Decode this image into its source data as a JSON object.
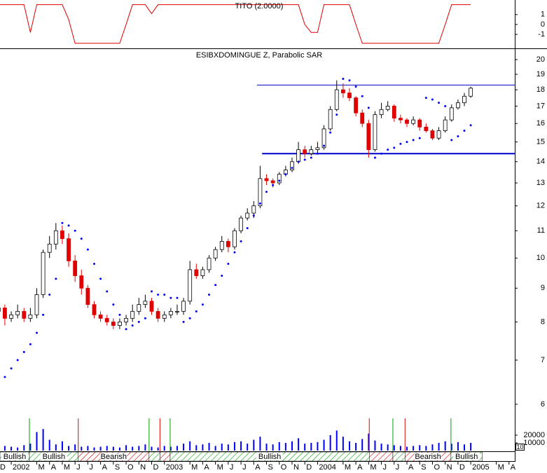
{
  "chart_data": [
    {
      "type": "line",
      "title": "TITO (2.0000)",
      "color": "#e00000",
      "values": [
        2,
        2,
        2,
        2,
        2,
        -0.8,
        2,
        2,
        2,
        2,
        2,
        0.5,
        -1.9,
        -1.9,
        -1.9,
        -1.9,
        -1.9,
        -1.9,
        -1.9,
        -1.9,
        0,
        2,
        2,
        2,
        1.1,
        2,
        2,
        2,
        2,
        2,
        2,
        2,
        2,
        2,
        2,
        2,
        2,
        2,
        2,
        2,
        2,
        2,
        2,
        2,
        2,
        2,
        2,
        2,
        0,
        -0.8,
        -0.8,
        2,
        2,
        2,
        2,
        2,
        0,
        -1.9,
        -1.9,
        -1.9,
        -1.9,
        -1.9,
        -1.9,
        -1.9,
        -1.9,
        -1.9,
        -1.9,
        -1.9,
        -1.9,
        -1.9,
        0,
        2,
        2,
        2,
        2
      ],
      "ylim": [
        -2.2,
        2.33
      ],
      "yticks": [
        1,
        0,
        -1
      ]
    },
    {
      "type": "candlestick",
      "title": "ESIBXDOMINGUE Z, Parabolic SAR",
      "log": true,
      "up_color": "#ffffff",
      "down_color": "#e00000",
      "open": [
        8.3,
        8.4,
        8.1,
        8.2,
        8.3,
        8.1,
        8.2,
        8.8,
        10.2,
        10.5,
        11.0,
        10.7,
        9.9,
        9.4,
        9.0,
        8.5,
        8.2,
        8.1,
        8.0,
        7.9,
        8.0,
        8.1,
        8.3,
        8.5,
        8.6,
        8.3,
        8.1,
        8.2,
        8.3,
        8.3,
        8.6,
        9.6,
        9.4,
        9.6,
        10.0,
        10.3,
        10.6,
        10.4,
        11.0,
        11.5,
        11.7,
        12.0,
        13.2,
        13.1,
        13.0,
        13.4,
        13.6,
        14.0,
        14.6,
        14.4,
        14.6,
        14.7,
        15.7,
        16.8,
        18.0,
        17.8,
        17.5,
        16.6,
        16.0,
        14.6,
        16.5,
        16.8,
        17.0,
        16.3,
        16.2,
        16.0,
        16.2,
        15.8,
        15.6,
        15.2,
        15.6,
        16.2,
        16.9,
        17.2,
        17.6
      ],
      "high": [
        8.6,
        8.5,
        8.3,
        8.5,
        8.4,
        8.4,
        9.0,
        10.3,
        10.8,
        11.3,
        11.2,
        10.9,
        10.1,
        9.6,
        9.1,
        8.6,
        8.3,
        8.2,
        8.1,
        8.1,
        8.2,
        8.5,
        8.7,
        8.8,
        8.7,
        8.4,
        8.3,
        8.4,
        8.5,
        8.7,
        9.9,
        9.8,
        9.7,
        10.1,
        10.4,
        10.8,
        10.7,
        11.1,
        11.6,
        11.9,
        12.2,
        13.8,
        13.4,
        13.2,
        13.5,
        13.8,
        14.2,
        15.0,
        14.8,
        14.8,
        15.0,
        15.9,
        17.0,
        18.6,
        18.4,
        18.1,
        17.6,
        16.8,
        16.2,
        16.7,
        17.2,
        17.3,
        17.1,
        16.5,
        16.3,
        16.4,
        16.3,
        16.0,
        15.7,
        15.8,
        16.4,
        17.1,
        17.4,
        17.8,
        18.2
      ],
      "low": [
        8.1,
        7.9,
        8.0,
        8.1,
        8.0,
        8.0,
        8.1,
        8.7,
        10.0,
        10.3,
        10.5,
        9.7,
        9.2,
        8.8,
        8.4,
        8.1,
        8.0,
        7.9,
        7.8,
        7.8,
        7.9,
        8.0,
        8.2,
        8.4,
        8.2,
        8.0,
        8.0,
        8.1,
        8.2,
        8.2,
        8.5,
        9.3,
        9.3,
        9.5,
        9.9,
        10.2,
        10.2,
        10.3,
        10.9,
        11.4,
        11.5,
        11.9,
        12.9,
        12.8,
        12.9,
        13.3,
        13.5,
        13.9,
        14.2,
        14.3,
        14.4,
        14.6,
        15.6,
        16.7,
        17.5,
        17.3,
        16.4,
        15.8,
        14.2,
        14.5,
        16.3,
        16.7,
        16.1,
        16.0,
        15.8,
        15.9,
        15.6,
        15.5,
        15.1,
        15.1,
        15.5,
        16.1,
        16.8,
        17.0,
        17.5
      ],
      "close": [
        8.4,
        8.1,
        8.2,
        8.3,
        8.1,
        8.2,
        8.8,
        10.2,
        10.5,
        11.0,
        10.7,
        9.9,
        9.4,
        9.0,
        8.5,
        8.2,
        8.1,
        8.0,
        7.9,
        8.0,
        8.1,
        8.3,
        8.5,
        8.6,
        8.3,
        8.1,
        8.2,
        8.3,
        8.3,
        8.6,
        9.6,
        9.4,
        9.6,
        10.0,
        10.3,
        10.6,
        10.4,
        11.0,
        11.5,
        11.7,
        12.0,
        13.2,
        13.1,
        13.0,
        13.4,
        13.6,
        14.0,
        14.6,
        14.4,
        14.6,
        14.7,
        15.7,
        16.8,
        18.0,
        17.8,
        17.5,
        16.6,
        16.0,
        14.6,
        16.5,
        16.8,
        17.0,
        16.3,
        16.2,
        16.0,
        16.2,
        15.8,
        15.6,
        15.2,
        15.6,
        16.2,
        16.9,
        17.2,
        17.6,
        18.1
      ],
      "sar": {
        "color": "#0000ff",
        "values": [
          6.4,
          6.6,
          6.8,
          7.0,
          7.2,
          7.4,
          7.7,
          8.2,
          8.8,
          9.3,
          11.3,
          11.2,
          11.0,
          10.7,
          10.3,
          9.8,
          9.3,
          8.9,
          8.5,
          8.2,
          7.8,
          7.9,
          8.0,
          8.1,
          8.9,
          8.8,
          8.8,
          8.7,
          8.7,
          8.0,
          8.1,
          8.3,
          8.5,
          8.8,
          9.1,
          9.4,
          9.8,
          10.2,
          10.6,
          11.1,
          11.6,
          12.1,
          12.6,
          12.9,
          13.1,
          13.4,
          13.7,
          14.0,
          14.1,
          14.2,
          14.4,
          14.8,
          15.5,
          16.5,
          18.7,
          18.6,
          18.2,
          17.6,
          16.9,
          14.2,
          14.4,
          14.6,
          14.7,
          14.9,
          15.0,
          15.1,
          15.2,
          17.5,
          17.4,
          17.2,
          17.0,
          15.1,
          15.3,
          15.6,
          15.9
        ]
      },
      "hlines": [
        {
          "value": 18.3,
          "start": 40.5,
          "color": "#0000cc",
          "width": 1
        },
        {
          "value": 14.4,
          "start": 41.3,
          "color": "#0000cc",
          "width": 2
        }
      ],
      "ylim": [
        5.74,
        20.7
      ],
      "yticks": [
        6,
        7,
        8,
        9,
        10,
        11,
        12,
        13,
        14,
        15,
        16,
        17,
        18,
        19,
        20
      ]
    },
    {
      "type": "bar",
      "color": "#0000ff",
      "scale_box": "10",
      "values": [
        9000,
        6000,
        5000,
        4000,
        7000,
        9000,
        24000,
        28000,
        14000,
        8000,
        12000,
        6000,
        8000,
        5000,
        6000,
        4000,
        5000,
        6000,
        5000,
        4000,
        7000,
        5000,
        6000,
        8000,
        5000,
        4000,
        6000,
        5000,
        6000,
        9000,
        12000,
        7000,
        8000,
        10000,
        6000,
        9000,
        8000,
        11000,
        12000,
        9000,
        14000,
        18000,
        9000,
        8000,
        11000,
        10000,
        12000,
        16000,
        9000,
        10000,
        11000,
        14000,
        20000,
        26000,
        18000,
        12000,
        10000,
        15000,
        22000,
        13000,
        9000,
        8000,
        7000,
        6000,
        5000,
        6000,
        7000,
        6000,
        8000,
        10000,
        12000,
        9000,
        11000,
        8000,
        10000
      ],
      "ylim": [
        0,
        41800
      ],
      "yticks": [
        10000,
        20000
      ]
    },
    {
      "type": "band",
      "segments": [
        {
          "start": 0.24,
          "end": 4.85,
          "color": "#00a000",
          "label": "Bullish"
        },
        {
          "start": 4.85,
          "end": 12.5,
          "color": "#00a000",
          "label": "Bullish"
        },
        {
          "start": 12.5,
          "end": 23.6,
          "color": "#e00000",
          "label": "Bearish"
        },
        {
          "start": 23.6,
          "end": 25.3,
          "color": "#00a000"
        },
        {
          "start": 25.3,
          "end": 26.9,
          "color": "#e00000"
        },
        {
          "start": 26.9,
          "end": 58.1,
          "color": "#00a000",
          "label": "Bullish"
        },
        {
          "start": 58.1,
          "end": 61.8,
          "color": "#e00000"
        },
        {
          "start": 61.8,
          "end": 63.7,
          "color": "#00a000"
        },
        {
          "start": 63.7,
          "end": 70.9,
          "color": "#e00000",
          "label": "Bearish"
        },
        {
          "start": 70.9,
          "end": 75.8,
          "color": "#00a000",
          "label": "Bullish"
        }
      ],
      "xlim": [
        0.24,
        80.9
      ],
      "xticks": [
        {
          "value": 0,
          "label": "D"
        },
        {
          "value": 2,
          "label": "2002"
        },
        {
          "value": 6,
          "label": "M"
        },
        {
          "value": 8,
          "label": "A"
        },
        {
          "value": 10,
          "label": "M"
        },
        {
          "value": 12,
          "label": "J"
        },
        {
          "value": 14,
          "label": "J"
        },
        {
          "value": 16,
          "label": "A"
        },
        {
          "value": 18,
          "label": "S"
        },
        {
          "value": 20,
          "label": "O"
        },
        {
          "value": 22,
          "label": "N"
        },
        {
          "value": 24,
          "label": "D"
        },
        {
          "value": 26,
          "label": "2003"
        },
        {
          "value": 30,
          "label": "M"
        },
        {
          "value": 32,
          "label": "A"
        },
        {
          "value": 34,
          "label": "M"
        },
        {
          "value": 36,
          "label": "J"
        },
        {
          "value": 38,
          "label": "J"
        },
        {
          "value": 40,
          "label": "A"
        },
        {
          "value": 42,
          "label": "S"
        },
        {
          "value": 44,
          "label": "O"
        },
        {
          "value": 46,
          "label": "N"
        },
        {
          "value": 48,
          "label": "D"
        },
        {
          "value": 50,
          "label": "2004"
        },
        {
          "value": 54,
          "label": "M"
        },
        {
          "value": 56,
          "label": "A"
        },
        {
          "value": 58,
          "label": "M"
        },
        {
          "value": 60,
          "label": "J"
        },
        {
          "value": 62,
          "label": "J"
        },
        {
          "value": 64,
          "label": "A"
        },
        {
          "value": 66,
          "label": "S"
        },
        {
          "value": 68,
          "label": "O"
        },
        {
          "value": 70,
          "label": "N"
        },
        {
          "value": 72,
          "label": "D"
        },
        {
          "value": 74,
          "label": "2005"
        },
        {
          "value": 78,
          "label": "M"
        },
        {
          "value": 80,
          "label": "A"
        }
      ]
    }
  ]
}
